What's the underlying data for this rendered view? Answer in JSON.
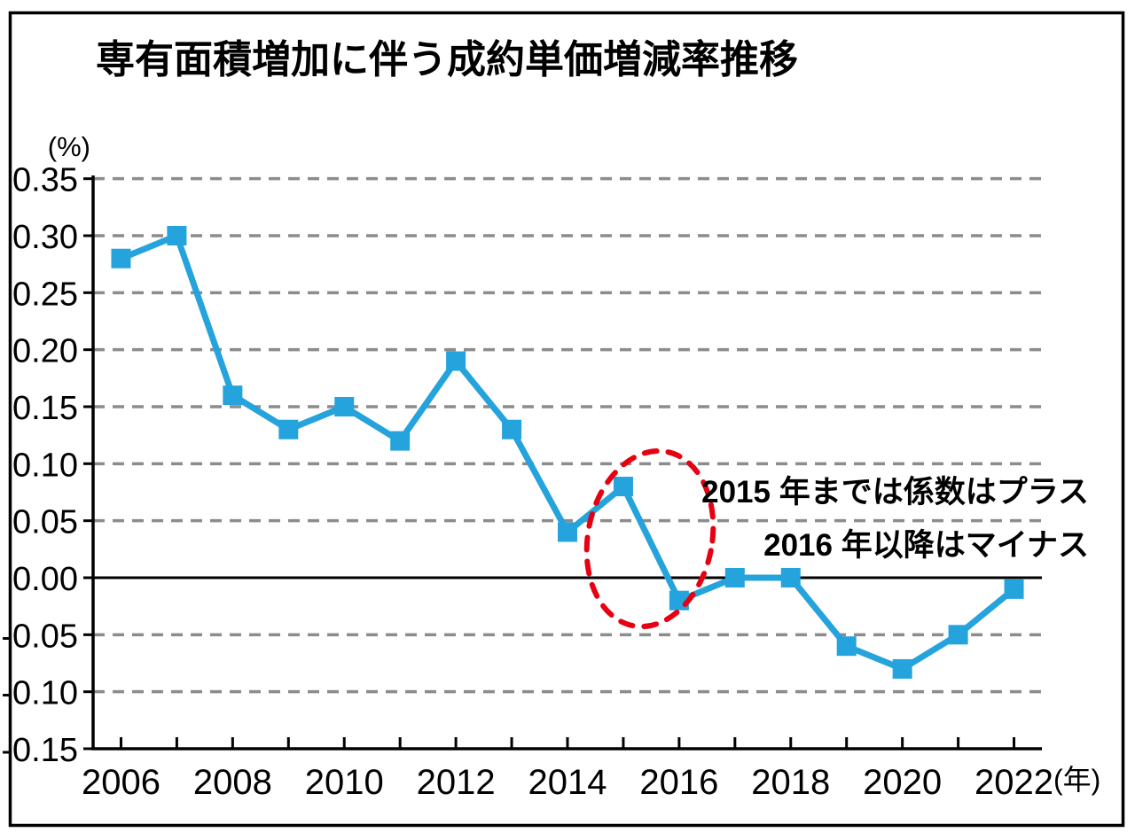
{
  "chart_data": {
    "type": "line",
    "title": "専有面積増加に伴う成約単価増減率推移",
    "ylabel": "(%)",
    "x_unit": "(年)",
    "years": [
      2006,
      2007,
      2008,
      2009,
      2010,
      2011,
      2012,
      2013,
      2014,
      2015,
      2016,
      2017,
      2018,
      2019,
      2020,
      2021,
      2022
    ],
    "values": [
      0.28,
      0.3,
      0.16,
      0.13,
      0.15,
      0.12,
      0.19,
      0.13,
      0.04,
      0.08,
      -0.02,
      0.0,
      0.0,
      -0.06,
      -0.08,
      -0.05,
      -0.01
    ],
    "ylim": [
      -0.15,
      0.35
    ],
    "grid": "horizontal-dashed",
    "legend": "none",
    "y_ticks": [
      {
        "value": 0.35,
        "label": "0.35"
      },
      {
        "value": 0.3,
        "label": "0.30"
      },
      {
        "value": 0.25,
        "label": "0.25"
      },
      {
        "value": 0.2,
        "label": "0.20"
      },
      {
        "value": 0.15,
        "label": "0.15"
      },
      {
        "value": 0.1,
        "label": "0.10"
      },
      {
        "value": 0.05,
        "label": "0.05"
      },
      {
        "value": 0.0,
        "label": "0.00"
      },
      {
        "value": -0.05,
        "label": "-0.05"
      },
      {
        "value": -0.1,
        "label": "-0.10"
      },
      {
        "value": -0.15,
        "label": "-0.15"
      }
    ],
    "x_tick_labels": [
      "2006",
      "2008",
      "2010",
      "2012",
      "2014",
      "2016",
      "2018",
      "2020",
      "2022"
    ],
    "annotations": [
      {
        "text": "2015 年までは係数はプラス"
      },
      {
        "text": "2016 年以降はマイナス"
      }
    ],
    "highlight": {
      "shape": "dashed-ellipse",
      "around_years": [
        2015,
        2016
      ]
    },
    "colors": {
      "line": "#25A3DC",
      "marker": "#25A3DC",
      "grid": "#8C8C8C",
      "axis": "#000000",
      "annotation": "#E60012"
    }
  }
}
